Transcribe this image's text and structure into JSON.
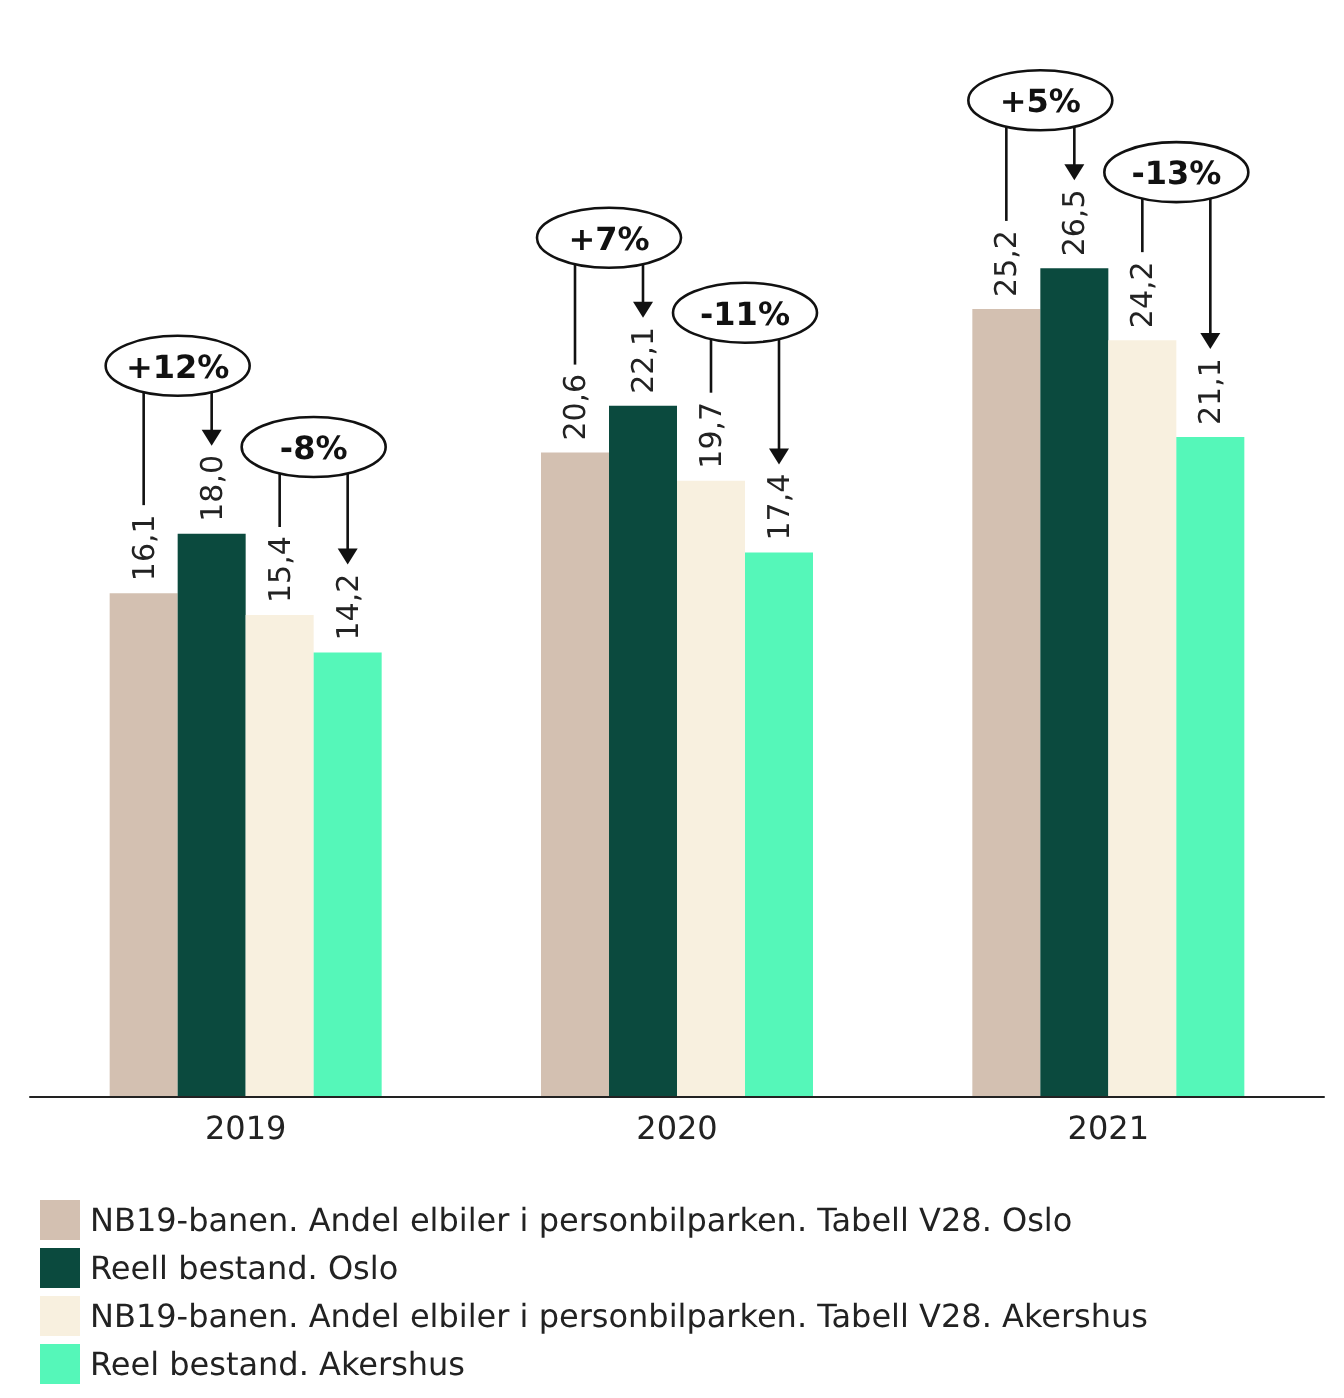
{
  "chart_data": {
    "type": "bar",
    "categories": [
      "2019",
      "2020",
      "2021"
    ],
    "series": [
      {
        "name": "NB19-banen. Andel elbiler i personbilparken. Tabell V28. Oslo",
        "color": "#d3c0b1",
        "values": [
          16.1,
          20.6,
          25.2
        ],
        "value_labels": [
          "16,1",
          "20,6",
          "25,2"
        ]
      },
      {
        "name": "Reell bestand. Oslo",
        "color": "#0b4a3e",
        "values": [
          18.0,
          22.1,
          26.5
        ],
        "value_labels": [
          "18,0",
          "22,1",
          "26,5"
        ]
      },
      {
        "name": "NB19-banen. Andel elbiler i personbilparken. Tabell V28. Akershus",
        "color": "#f8f0df",
        "values": [
          15.4,
          19.7,
          24.2
        ],
        "value_labels": [
          "15,4",
          "19,7",
          "24,2"
        ]
      },
      {
        "name": "Reel bestand. Akershus",
        "color": "#55f7b9",
        "values": [
          14.2,
          17.4,
          21.1
        ],
        "value_labels": [
          "14,2",
          "17,4",
          "21,1"
        ]
      }
    ],
    "annotations": [
      "+12%",
      "-8%",
      "+7%",
      "-11%",
      "+5%",
      "-13%"
    ],
    "legend": "bottom"
  }
}
